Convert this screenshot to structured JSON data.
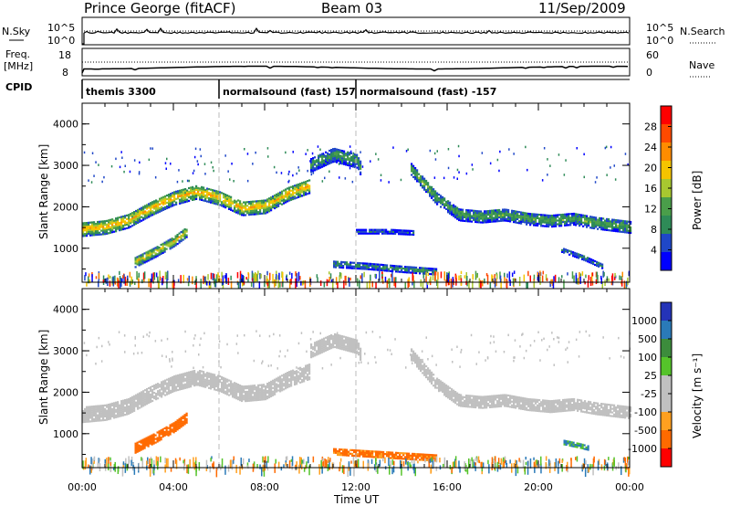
{
  "header": {
    "station": "Prince George (fitACF)",
    "beam": "Beam 03",
    "date": "11/Sep/2009"
  },
  "top_panel": {
    "left_label": "N.Sky",
    "left_ticks": [
      "10^5",
      "10^0"
    ],
    "right_ticks": [
      "10^5",
      "10^0"
    ],
    "right_label": "N.Search"
  },
  "freq_panel": {
    "left_label_line1": "Freq.",
    "left_label_line2": "[MHz]",
    "left_ticks": [
      "18",
      "8"
    ],
    "right_ticks": [
      "60",
      "0"
    ],
    "right_label": "Nave"
  },
  "cpid": {
    "label": "CPID",
    "segments": [
      {
        "name": "themis 3300",
        "start_h": 0
      },
      {
        "name": "normalsound (fast) 157",
        "start_h": 6
      },
      {
        "name": "normalsound (fast) -157",
        "start_h": 12
      }
    ]
  },
  "colors": {
    "power_scale": [
      "#0000ff",
      "#1f47c8",
      "#2e8b57",
      "#4a9e4a",
      "#a8c830",
      "#f5c400",
      "#ff8c00",
      "#ff4a00",
      "#ff0000"
    ],
    "velocity_scale": [
      "#2433b8",
      "#2a7ab8",
      "#3c8c3c",
      "#55c32a",
      "#c0c0c0",
      "#c0c0c0",
      "#ffa020",
      "#ff6a00",
      "#ff0000"
    ],
    "ground_scatter": "#c0c0c0"
  },
  "chart_data": [
    {
      "type": "heatmap",
      "title": "Power",
      "xlabel": "Time UT",
      "ylabel": "Slant Range [km]",
      "xlim": [
        0,
        24
      ],
      "ylim": [
        180,
        4500
      ],
      "x_ticks": [
        "00:00",
        "04:00",
        "08:00",
        "12:00",
        "16:00",
        "20:00",
        "00:00"
      ],
      "y_ticks": [
        "1000",
        "2000",
        "3000",
        "4000"
      ],
      "colorbar_label": "Power [dB]",
      "colorbar_ticks": [
        "4",
        "8",
        "12",
        "16",
        "20",
        "24",
        "28"
      ],
      "colorbar_range": [
        0,
        30
      ],
      "bands": [
        {
          "t": [
            0,
            1,
            2,
            3,
            4,
            5,
            6,
            7,
            8,
            9,
            10
          ],
          "r": [
            1450,
            1500,
            1650,
            1950,
            2200,
            2350,
            2200,
            1950,
            2000,
            2300,
            2500
          ],
          "width_km": 350,
          "power_db": 20
        },
        {
          "t": [
            2.3,
            3.2,
            4.0,
            4.6
          ],
          "r": [
            650,
            900,
            1150,
            1400
          ],
          "width_km": 250,
          "power_db": 18
        },
        {
          "t": [
            10.0,
            11.0,
            12.0,
            12.2
          ],
          "r": [
            3000,
            3250,
            3100,
            2900
          ],
          "width_km": 350,
          "power_db": 10
        },
        {
          "t": [
            14.4,
            15.5,
            16.5,
            17.5,
            18.5,
            19.5,
            20.5,
            21.5,
            22.5,
            24
          ],
          "r": [
            2900,
            2200,
            1800,
            1750,
            1800,
            1700,
            1650,
            1700,
            1600,
            1500
          ],
          "width_km": 300,
          "power_db": 12
        },
        {
          "t": [
            11.0,
            12.5,
            14.0,
            15.5
          ],
          "r": [
            600,
            550,
            480,
            420
          ],
          "width_km": 150,
          "power_db": 10
        },
        {
          "t": [
            21.0,
            22.0,
            22.8
          ],
          "r": [
            950,
            750,
            550
          ],
          "width_km": 120,
          "power_db": 8
        },
        {
          "t": [
            12.0,
            13.5,
            14.5
          ],
          "r": [
            1380,
            1380,
            1350
          ],
          "width_km": 90,
          "power_db": 6
        }
      ]
    },
    {
      "type": "heatmap",
      "title": "Velocity",
      "xlabel": "Time UT",
      "ylabel": "Slant Range [km]",
      "xlim": [
        0,
        24
      ],
      "ylim": [
        180,
        4500
      ],
      "x_ticks": [
        "00:00",
        "04:00",
        "08:00",
        "12:00",
        "16:00",
        "20:00",
        "00:00"
      ],
      "y_ticks": [
        "1000",
        "2000",
        "3000",
        "4000"
      ],
      "colorbar_label": "Velocity [m s⁻¹]",
      "colorbar_ticks": [
        "1000",
        "500",
        "100",
        "25",
        "-25",
        "-100",
        "-500",
        "-1000"
      ],
      "colorbar_range": [
        -1000,
        1000
      ],
      "bands": [
        {
          "t": [
            0,
            1,
            2,
            3,
            4,
            5,
            6,
            7,
            8,
            9,
            10
          ],
          "r": [
            1450,
            1500,
            1650,
            1950,
            2200,
            2350,
            2200,
            1950,
            2000,
            2300,
            2500
          ],
          "width_km": 380,
          "velocity": 0
        },
        {
          "t": [
            2.3,
            3.2,
            4.0,
            4.6
          ],
          "r": [
            650,
            900,
            1150,
            1400
          ],
          "width_km": 260,
          "velocity": -300
        },
        {
          "t": [
            10.0,
            11.0,
            12.0,
            12.2
          ],
          "r": [
            3000,
            3250,
            3100,
            2900
          ],
          "width_km": 350,
          "velocity": 0
        },
        {
          "t": [
            14.4,
            15.5,
            16.5,
            17.5,
            18.5,
            19.5,
            20.5,
            21.5,
            22.5,
            24
          ],
          "r": [
            2900,
            2200,
            1800,
            1750,
            1800,
            1700,
            1650,
            1700,
            1600,
            1500
          ],
          "width_km": 300,
          "velocity": 0
        },
        {
          "t": [
            11.0,
            12.5,
            14.0,
            15.5
          ],
          "r": [
            550,
            500,
            450,
            400
          ],
          "width_km": 150,
          "velocity": -150
        },
        {
          "t": [
            21.1,
            21.8,
            22.2
          ],
          "r": [
            780,
            700,
            640
          ],
          "width_km": 120,
          "velocity": 150
        }
      ]
    }
  ]
}
